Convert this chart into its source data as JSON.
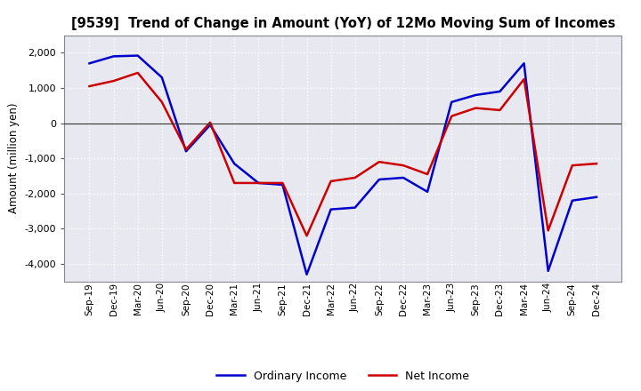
{
  "title": "[9539]  Trend of Change in Amount (YoY) of 12Mo Moving Sum of Incomes",
  "ylabel": "Amount (million yen)",
  "x_labels": [
    "Sep-19",
    "Dec-19",
    "Mar-20",
    "Jun-20",
    "Sep-20",
    "Dec-20",
    "Mar-21",
    "Jun-21",
    "Sep-21",
    "Dec-21",
    "Mar-22",
    "Jun-22",
    "Sep-22",
    "Dec-22",
    "Mar-23",
    "Jun-23",
    "Sep-23",
    "Dec-23",
    "Mar-24",
    "Jun-24",
    "Sep-24",
    "Dec-24"
  ],
  "ordinary_income": [
    1700,
    1900,
    1920,
    1300,
    -800,
    -50,
    -1150,
    -1700,
    -1750,
    -4300,
    -2450,
    -2400,
    -1600,
    -1550,
    -1950,
    600,
    800,
    900,
    1700,
    -4200,
    -2200,
    -2100
  ],
  "net_income": [
    1050,
    1200,
    1430,
    600,
    -750,
    20,
    -1700,
    -1700,
    -1700,
    -3200,
    -1650,
    -1550,
    -1100,
    -1200,
    -1450,
    200,
    430,
    370,
    1250,
    -3050,
    -1200,
    -1150
  ],
  "ordinary_color": "#0000cc",
  "net_color": "#cc0000",
  "ylim": [
    -4500,
    2500
  ],
  "yticks": [
    -4000,
    -3000,
    -2000,
    -1000,
    0,
    1000,
    2000
  ],
  "plot_bg_color": "#e8e8f0",
  "fig_bg_color": "#ffffff",
  "grid_color": "#ffffff",
  "legend_labels": [
    "Ordinary Income",
    "Net Income"
  ]
}
